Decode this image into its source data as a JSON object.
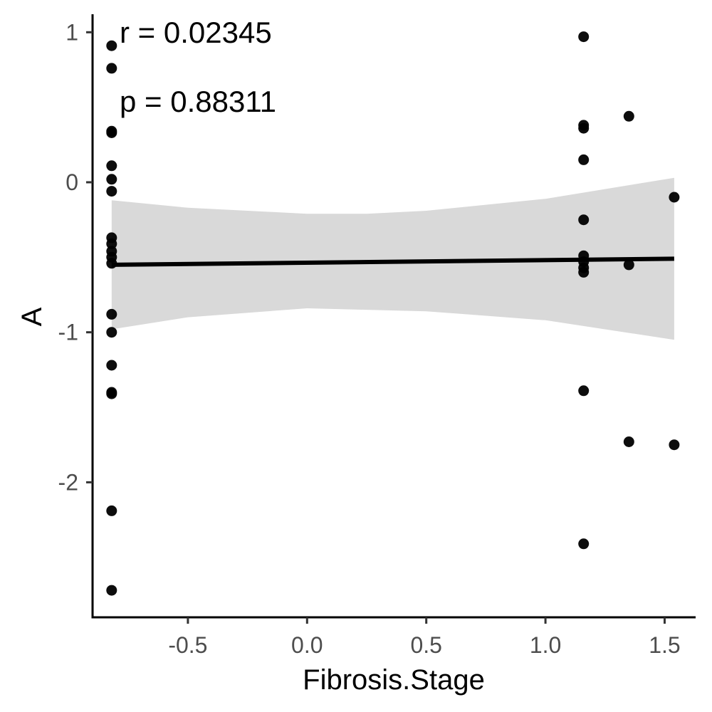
{
  "chart_data": {
    "type": "scatter",
    "title": "",
    "xlabel": "Fibrosis.Stage",
    "ylabel": "A",
    "xlim": [
      -0.9,
      1.63
    ],
    "ylim": [
      -2.9,
      1.12
    ],
    "x_ticks": [
      -0.5,
      0.0,
      0.5,
      1.0,
      1.5
    ],
    "x_tick_labels": [
      "-0.5",
      "0.0",
      "0.5",
      "1.0",
      "1.5"
    ],
    "y_ticks": [
      1,
      0,
      -1,
      -2
    ],
    "y_tick_labels": [
      "1",
      "0",
      "-1",
      "-2"
    ],
    "grid": false,
    "annotations": [
      "r = 0.02345",
      "p = 0.88311"
    ],
    "colors": {
      "points": "#000000",
      "line": "#000000",
      "ribbon": "#d9d9d9",
      "axis": "#000000",
      "tick_text": "#4d4d4d"
    },
    "points": [
      {
        "x": -0.82,
        "y": 0.91
      },
      {
        "x": -0.82,
        "y": 0.76
      },
      {
        "x": -0.82,
        "y": 0.34
      },
      {
        "x": -0.82,
        "y": 0.33
      },
      {
        "x": -0.82,
        "y": 0.11
      },
      {
        "x": -0.82,
        "y": 0.02
      },
      {
        "x": -0.82,
        "y": -0.06
      },
      {
        "x": -0.82,
        "y": -0.37
      },
      {
        "x": -0.82,
        "y": -0.41
      },
      {
        "x": -0.82,
        "y": -0.46
      },
      {
        "x": -0.82,
        "y": -0.5
      },
      {
        "x": -0.82,
        "y": -0.54
      },
      {
        "x": -0.82,
        "y": -0.88
      },
      {
        "x": -0.82,
        "y": -1.0
      },
      {
        "x": -0.82,
        "y": -1.22
      },
      {
        "x": -0.82,
        "y": -1.4
      },
      {
        "x": -0.82,
        "y": -1.41
      },
      {
        "x": -0.82,
        "y": -2.19
      },
      {
        "x": -0.82,
        "y": -2.72
      },
      {
        "x": 1.16,
        "y": 0.97
      },
      {
        "x": 1.16,
        "y": 0.38
      },
      {
        "x": 1.16,
        "y": 0.36
      },
      {
        "x": 1.16,
        "y": 0.15
      },
      {
        "x": 1.16,
        "y": -0.25
      },
      {
        "x": 1.16,
        "y": -0.49
      },
      {
        "x": 1.16,
        "y": -0.53
      },
      {
        "x": 1.16,
        "y": -0.57
      },
      {
        "x": 1.16,
        "y": -0.6
      },
      {
        "x": 1.16,
        "y": -1.39
      },
      {
        "x": 1.16,
        "y": -2.41
      },
      {
        "x": 1.35,
        "y": 0.44
      },
      {
        "x": 1.35,
        "y": -0.55
      },
      {
        "x": 1.35,
        "y": -1.73
      },
      {
        "x": 1.54,
        "y": -0.1
      },
      {
        "x": 1.54,
        "y": -1.75
      }
    ],
    "fit_line": {
      "x": [
        -0.82,
        1.54
      ],
      "y": [
        -0.55,
        -0.51
      ]
    },
    "confidence_band": {
      "x": [
        -0.82,
        -0.5,
        0.0,
        0.25,
        0.5,
        1.0,
        1.54
      ],
      "lower": [
        -0.98,
        -0.9,
        -0.84,
        -0.85,
        -0.86,
        -0.92,
        -1.05
      ],
      "upper": [
        -0.12,
        -0.17,
        -0.21,
        -0.21,
        -0.19,
        -0.11,
        0.03
      ]
    }
  }
}
